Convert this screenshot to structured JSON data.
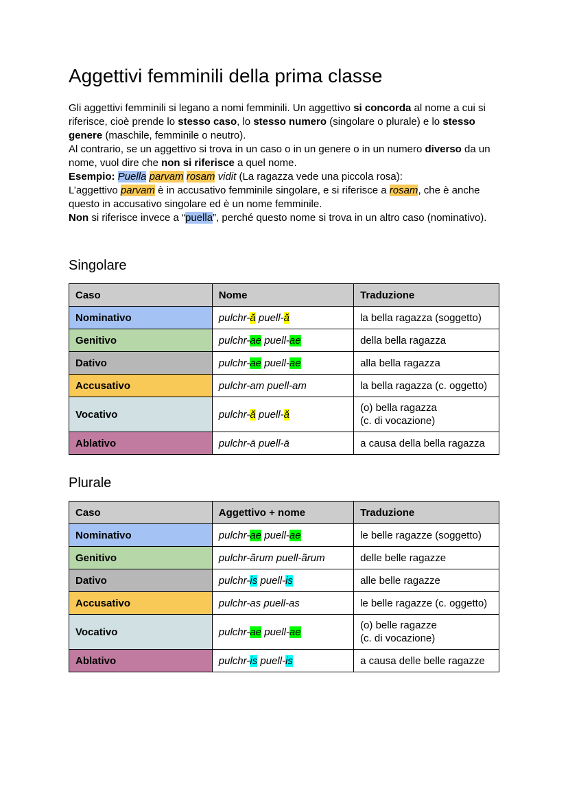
{
  "title": "Aggettivi femminili della prima classe",
  "colors": {
    "header_cell_bg": "#cccccc",
    "nominativo_bg": "#a4c2f4",
    "genitivo_bg": "#b6d7a8",
    "dativo_bg": "#b7b7b7",
    "accusativo_bg": "#f9c957",
    "vocativo_bg": "#d0e0e3",
    "ablativo_bg": "#c27ba0",
    "table_border": "#000000",
    "text": "#000000"
  },
  "highlight_colors": {
    "yellow": "#ffff00",
    "green": "#00ff00",
    "cyan": "#00ffff",
    "blue": "#a4c2f4",
    "amber": "#f9c957"
  },
  "intro": {
    "segments": [
      {
        "t": "Gli aggettivi femminili si legano a nomi femminili. Un aggettivo "
      },
      {
        "t": "si concorda",
        "b": true
      },
      {
        "t": " al nome a cui si riferisce, cioè prende lo "
      },
      {
        "t": "stesso caso",
        "b": true
      },
      {
        "t": ", lo "
      },
      {
        "t": "stesso numero",
        "b": true
      },
      {
        "t": " (singolare o plurale) e lo "
      },
      {
        "t": "stesso genere",
        "b": true
      },
      {
        "t": " (maschile, femminile o neutro)."
      },
      {
        "br": true
      },
      {
        "t": "Al contrario, se un aggettivo si trova in un caso o in un genere o in un numero "
      },
      {
        "t": "diverso",
        "b": true
      },
      {
        "t": " da un nome, vuol dire che "
      },
      {
        "t": "non si riferisce",
        "b": true
      },
      {
        "t": " a quel nome."
      },
      {
        "br": true
      },
      {
        "t": "Esempio: ",
        "b": true
      },
      {
        "t": "Puella",
        "i": true,
        "hl": "blue"
      },
      {
        "t": " ",
        "i": true
      },
      {
        "t": "parvam",
        "i": true,
        "hl": "amber"
      },
      {
        "t": " ",
        "i": true
      },
      {
        "t": "rosam",
        "i": true,
        "hl": "amber"
      },
      {
        "t": " vidit",
        "i": true
      },
      {
        "t": " (La ragazza vede una piccola rosa):"
      },
      {
        "br": true
      },
      {
        "t": "L’aggettivo "
      },
      {
        "t": "parvam",
        "i": true,
        "hl": "amber"
      },
      {
        "t": " è in accusativo femminile singolare, e si riferisce a "
      },
      {
        "t": "rosam",
        "i": true,
        "hl": "amber"
      },
      {
        "t": ", che è anche questo in accusativo singolare ed è un nome femminile."
      },
      {
        "br": true
      },
      {
        "t": "Non",
        "b": true
      },
      {
        "t": " si riferisce invece a “"
      },
      {
        "t": "puella",
        "hl": "blue"
      },
      {
        "t": "”, perché questo nome si trova in un altro caso (nominativo)."
      }
    ]
  },
  "tables": [
    {
      "heading": "Singolare",
      "columns": [
        "Caso",
        "Nome",
        "Traduzione"
      ],
      "rows": [
        {
          "case": "Nominativo",
          "color": "#a4c2f4",
          "forms": [
            {
              "t": "pulchr-"
            },
            {
              "t": "ă",
              "hl": "yellow"
            },
            {
              "t": " puell-"
            },
            {
              "t": "ă",
              "hl": "yellow"
            }
          ],
          "translation": "la bella ragazza (soggetto)"
        },
        {
          "case": "Genitivo",
          "color": "#b6d7a8",
          "forms": [
            {
              "t": "pulchr-"
            },
            {
              "t": "ae",
              "hl": "green"
            },
            {
              "t": " puell-"
            },
            {
              "t": "ae",
              "hl": "green"
            }
          ],
          "translation": "della bella ragazza"
        },
        {
          "case": "Dativo",
          "color": "#b7b7b7",
          "forms": [
            {
              "t": "pulchr-"
            },
            {
              "t": "ae",
              "hl": "green"
            },
            {
              "t": " puell-"
            },
            {
              "t": "ae",
              "hl": "green"
            }
          ],
          "translation": "alla bella ragazza"
        },
        {
          "case": "Accusativo",
          "color": "#f9c957",
          "forms": [
            {
              "t": "pulchr-am puell-am"
            }
          ],
          "translation": "la bella ragazza (c. oggetto)"
        },
        {
          "case": "Vocativo",
          "color": "#d0e0e3",
          "forms": [
            {
              "t": "pulchr-"
            },
            {
              "t": "ă",
              "hl": "yellow"
            },
            {
              "t": " puell-"
            },
            {
              "t": "ă",
              "hl": "yellow"
            }
          ],
          "translation": "(o) bella ragazza\n(c. di vocazione)"
        },
        {
          "case": "Ablativo",
          "color": "#c27ba0",
          "forms": [
            {
              "t": "pulchr-ā puell-ā"
            }
          ],
          "translation": "a causa della bella ragazza"
        }
      ]
    },
    {
      "heading": "Plurale",
      "columns": [
        "Caso",
        "Aggettivo + nome",
        "Traduzione"
      ],
      "rows": [
        {
          "case": "Nominativo",
          "color": "#a4c2f4",
          "forms": [
            {
              "t": "pulchr-"
            },
            {
              "t": "ae",
              "hl": "green"
            },
            {
              "t": " puell-"
            },
            {
              "t": "ae",
              "hl": "green"
            }
          ],
          "translation": "le belle ragazze (soggetto)"
        },
        {
          "case": "Genitivo",
          "color": "#b6d7a8",
          "forms": [
            {
              "t": "pulchr-ãrum puell-ãrum"
            }
          ],
          "translation": "delle belle ragazze"
        },
        {
          "case": "Dativo",
          "color": "#b7b7b7",
          "forms": [
            {
              "t": "pulchr-"
            },
            {
              "t": "is",
              "hl": "cyan"
            },
            {
              "t": " puell-"
            },
            {
              "t": "is",
              "hl": "cyan"
            }
          ],
          "translation": "alle belle ragazze"
        },
        {
          "case": "Accusativo",
          "color": "#f9c957",
          "forms": [
            {
              "t": "pulchr-as puell-as"
            }
          ],
          "translation": "le belle ragazze (c. oggetto)"
        },
        {
          "case": "Vocativo",
          "color": "#d0e0e3",
          "forms": [
            {
              "t": "pulchr-"
            },
            {
              "t": "ae",
              "hl": "green"
            },
            {
              "t": " puell-"
            },
            {
              "t": "ae",
              "hl": "green"
            }
          ],
          "translation": "(o) belle ragazze\n(c. di vocazione)"
        },
        {
          "case": "Ablativo",
          "color": "#c27ba0",
          "forms": [
            {
              "t": "pulchr-"
            },
            {
              "t": "is",
              "hl": "cyan"
            },
            {
              "t": " puell-"
            },
            {
              "t": "is",
              "hl": "cyan"
            }
          ],
          "translation": "a causa delle belle ragazze"
        }
      ]
    }
  ]
}
